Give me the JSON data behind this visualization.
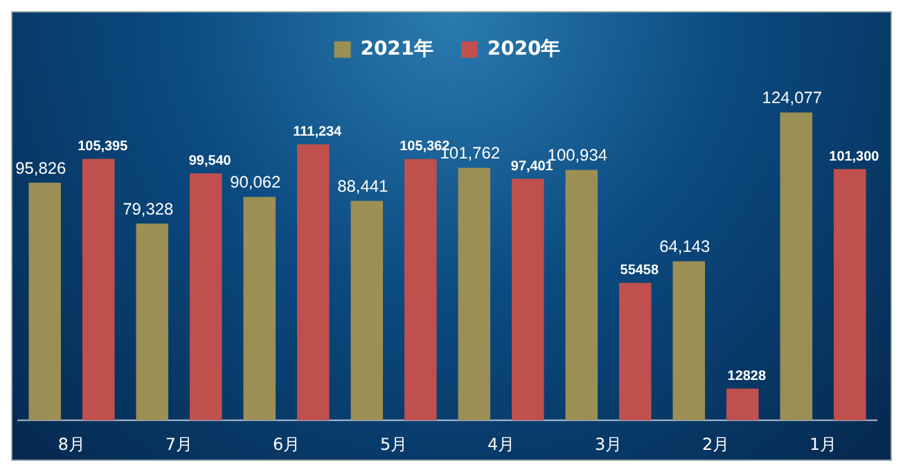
{
  "chart_data": {
    "type": "bar",
    "categories": [
      "8月",
      "7月",
      "6月",
      "5月",
      "4月",
      "3月",
      "2月",
      "1月"
    ],
    "series": [
      {
        "name": "2021年",
        "color": "#9b8f55",
        "values": [
          95826,
          79328,
          90062,
          88441,
          101762,
          100934,
          64143,
          124077
        ],
        "value_labels": [
          "95,826",
          "79,328",
          "90,062",
          "88,441",
          "101,762",
          "100,934",
          "64,143",
          "124,077"
        ]
      },
      {
        "name": "2020年",
        "color": "#c0504d",
        "values": [
          105395,
          99540,
          111234,
          105362,
          97401,
          55458,
          12828,
          101300
        ],
        "value_labels": [
          "105,395",
          "99,540",
          "111,234",
          "105,362",
          "97,401",
          "55458",
          "12828",
          "101,300"
        ]
      }
    ],
    "legend": "top",
    "grid": false
  }
}
